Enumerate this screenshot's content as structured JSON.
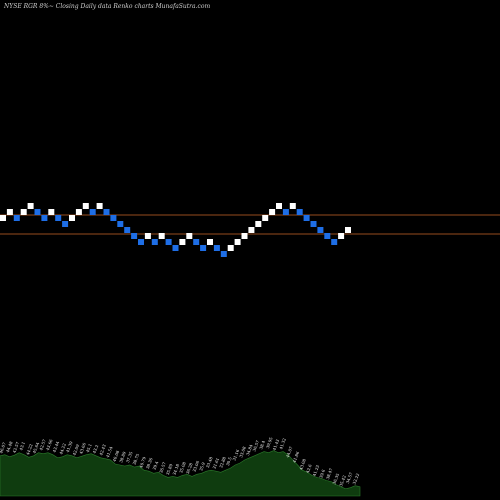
{
  "header": {
    "title": "NYSE RGR 8%~   Closing Daily data  Renko  charts MunafaSutra.com"
  },
  "colors": {
    "background": "#000000",
    "up_brick": "#ffffff",
    "down_brick": "#1e6ee6",
    "reference_line": "#c86428",
    "volume_fill": "#0f3c0f",
    "volume_stroke": "#2a7a2a"
  },
  "chart_data": {
    "type": "renko",
    "title": "NYSE RGR 8%~   Closing Daily data  Renko  charts MunafaSutra.com",
    "bricks": [
      {
        "dir": "up",
        "level": 1
      },
      {
        "dir": "up",
        "level": 2
      },
      {
        "dir": "down",
        "level": 1
      },
      {
        "dir": "up",
        "level": 2
      },
      {
        "dir": "up",
        "level": 3
      },
      {
        "dir": "down",
        "level": 2
      },
      {
        "dir": "down",
        "level": 1
      },
      {
        "dir": "up",
        "level": 2
      },
      {
        "dir": "down",
        "level": 1
      },
      {
        "dir": "down",
        "level": 0
      },
      {
        "dir": "up",
        "level": 1
      },
      {
        "dir": "up",
        "level": 2
      },
      {
        "dir": "up",
        "level": 3
      },
      {
        "dir": "down",
        "level": 2
      },
      {
        "dir": "up",
        "level": 3
      },
      {
        "dir": "down",
        "level": 2
      },
      {
        "dir": "down",
        "level": 1
      },
      {
        "dir": "down",
        "level": 0
      },
      {
        "dir": "down",
        "level": -1
      },
      {
        "dir": "down",
        "level": -2
      },
      {
        "dir": "down",
        "level": -3
      },
      {
        "dir": "up",
        "level": -2
      },
      {
        "dir": "down",
        "level": -3
      },
      {
        "dir": "up",
        "level": -2
      },
      {
        "dir": "down",
        "level": -3
      },
      {
        "dir": "down",
        "level": -4
      },
      {
        "dir": "up",
        "level": -3
      },
      {
        "dir": "up",
        "level": -2
      },
      {
        "dir": "down",
        "level": -3
      },
      {
        "dir": "down",
        "level": -4
      },
      {
        "dir": "up",
        "level": -3
      },
      {
        "dir": "down",
        "level": -4
      },
      {
        "dir": "down",
        "level": -5
      },
      {
        "dir": "up",
        "level": -4
      },
      {
        "dir": "up",
        "level": -3
      },
      {
        "dir": "up",
        "level": -2
      },
      {
        "dir": "up",
        "level": -1
      },
      {
        "dir": "up",
        "level": 0
      },
      {
        "dir": "up",
        "level": 1
      },
      {
        "dir": "up",
        "level": 2
      },
      {
        "dir": "up",
        "level": 3
      },
      {
        "dir": "down",
        "level": 2
      },
      {
        "dir": "up",
        "level": 3
      },
      {
        "dir": "down",
        "level": 2
      },
      {
        "dir": "down",
        "level": 1
      },
      {
        "dir": "down",
        "level": 0
      },
      {
        "dir": "down",
        "level": -1
      },
      {
        "dir": "down",
        "level": -2
      },
      {
        "dir": "down",
        "level": -3
      },
      {
        "dir": "up",
        "level": -2
      },
      {
        "dir": "up",
        "level": -1
      }
    ],
    "reference_lines": [
      1,
      -1
    ],
    "volume": {
      "levels": [
        0.78,
        0.8,
        0.76,
        0.79,
        0.84,
        0.8,
        0.75,
        0.78,
        0.84,
        0.82,
        0.84,
        0.8,
        0.74,
        0.76,
        0.8,
        0.78,
        0.74,
        0.77,
        0.8,
        0.82,
        0.78,
        0.74,
        0.72,
        0.7,
        0.62,
        0.6,
        0.58,
        0.6,
        0.56,
        0.58,
        0.5,
        0.48,
        0.44,
        0.46,
        0.4,
        0.36,
        0.38,
        0.36,
        0.4,
        0.42,
        0.38,
        0.42,
        0.44,
        0.48,
        0.5,
        0.48,
        0.46,
        0.5,
        0.54,
        0.6,
        0.64,
        0.7,
        0.74,
        0.78,
        0.82,
        0.86,
        0.84,
        0.88,
        0.84,
        0.86,
        0.8,
        0.7,
        0.6,
        0.5,
        0.46,
        0.4,
        0.36,
        0.34,
        0.3,
        0.28,
        0.22,
        0.18,
        0.14,
        0.16,
        0.2,
        0.18
      ],
      "labels": [
        "46.07",
        "44.48",
        "42.57",
        "43.1",
        "44.22",
        "45.64",
        "42.57",
        "43.66",
        "43.44",
        "44.22",
        "41.39",
        "42.09",
        "43.66",
        "45.1",
        "43.2",
        "42.43",
        "41.54",
        "40.08",
        "38.89",
        "37.35",
        "38.75",
        "40.79",
        "38.36",
        "39.4",
        "36.57",
        "35.89",
        "34.18",
        "35.08",
        "36.28",
        "33.06",
        "35.9",
        "33.48",
        "31.61",
        "32.88",
        "30.5",
        "31.16",
        "33.08",
        "34.84",
        "36.57",
        "38.4",
        "39.95",
        "41.43",
        "41.32",
        "44.07",
        "41.86",
        "43.08",
        "42.6",
        "41.23",
        "39.6",
        "38.47",
        "36.35",
        "35.42",
        "34.57",
        "32.22"
      ]
    }
  }
}
